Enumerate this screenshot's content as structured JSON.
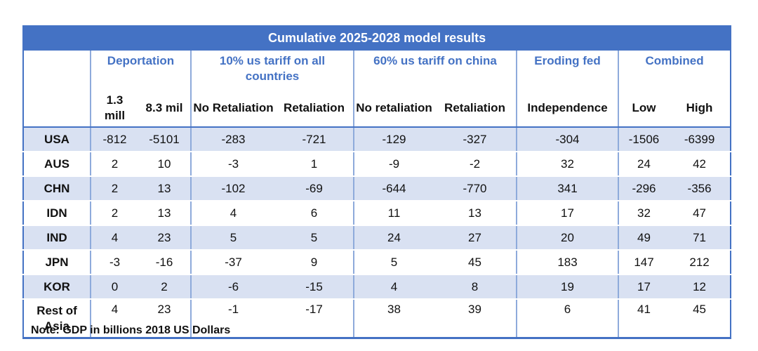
{
  "table": {
    "title": "Cumulative 2025-2028 model results",
    "groups": [
      {
        "label": "Deportation"
      },
      {
        "label": "10% us tariff on all countries"
      },
      {
        "label": "60% us tariff on china"
      },
      {
        "label": "Eroding fed"
      },
      {
        "label": "Combined"
      }
    ],
    "subheaders": [
      "1.3 mill",
      "8.3 mil",
      "No Retaliation",
      "Retaliation",
      "No retaliation",
      "Retaliation",
      "Independence",
      "Low",
      "High"
    ],
    "rows": [
      {
        "country": "USA",
        "values": [
          "-812",
          "-5101",
          "-283",
          "-721",
          "-129",
          "-327",
          "-304",
          "-1506",
          "-6399"
        ]
      },
      {
        "country": "AUS",
        "values": [
          "2",
          "10",
          "-3",
          "1",
          "-9",
          "-2",
          "32",
          "24",
          "42"
        ]
      },
      {
        "country": "CHN",
        "values": [
          "2",
          "13",
          "-102",
          "-69",
          "-644",
          "-770",
          "341",
          "-296",
          "-356"
        ]
      },
      {
        "country": "IDN",
        "values": [
          "2",
          "13",
          "4",
          "6",
          "11",
          "13",
          "17",
          "32",
          "47"
        ]
      },
      {
        "country": "IND",
        "values": [
          "4",
          "23",
          "5",
          "5",
          "24",
          "27",
          "20",
          "49",
          "71"
        ]
      },
      {
        "country": "JPN",
        "values": [
          "-3",
          "-16",
          "-37",
          "9",
          "5",
          "45",
          "183",
          "147",
          "212"
        ]
      },
      {
        "country": "KOR",
        "values": [
          "0",
          "2",
          "-6",
          "-15",
          "4",
          "8",
          "19",
          "17",
          "12"
        ]
      },
      {
        "country": "Rest of Asia",
        "values": [
          "4",
          "23",
          "-1",
          "-17",
          "38",
          "39",
          "6",
          "41",
          "45"
        ]
      }
    ]
  },
  "note": "Note: GDP in billions 2018 US Dollars",
  "colors": {
    "header_blue": "#4472c4",
    "row_shade": "#d9e1f2",
    "divider": "#8eaadb"
  }
}
